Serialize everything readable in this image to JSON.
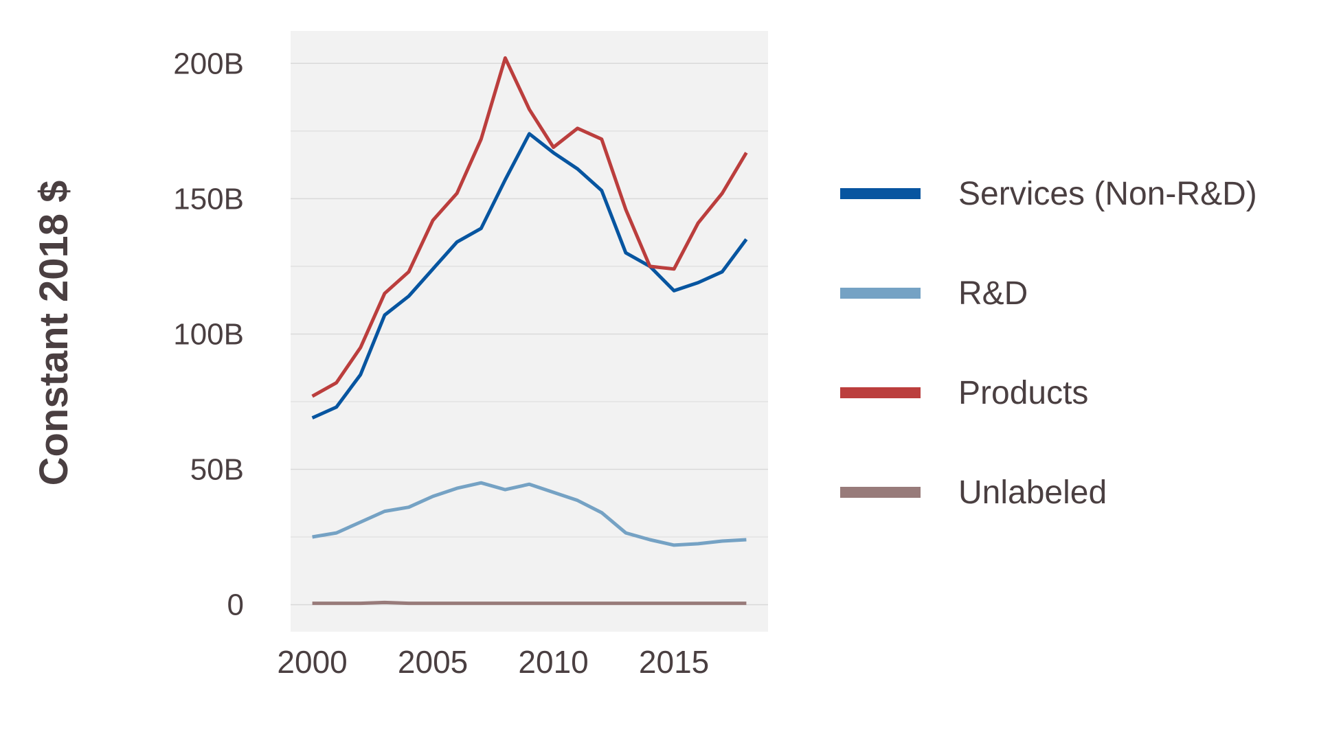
{
  "chart_data": {
    "type": "line",
    "title": "",
    "xlabel": "",
    "ylabel": "Constant 2018 $",
    "x": [
      2000,
      2001,
      2002,
      2003,
      2004,
      2005,
      2006,
      2007,
      2008,
      2009,
      2010,
      2011,
      2012,
      2013,
      2014,
      2015,
      2016,
      2017,
      2018
    ],
    "xlim": [
      1999.1,
      2018.9
    ],
    "ylim": [
      -10,
      212
    ],
    "x_ticks": [
      2000,
      2005,
      2010,
      2015
    ],
    "x_tick_labels": [
      "2000",
      "2005",
      "2010",
      "2015"
    ],
    "y_ticks": [
      0,
      50,
      100,
      150,
      200
    ],
    "y_tick_labels": [
      "0",
      "50B",
      "100B",
      "150B",
      "200B"
    ],
    "y_minor_gridlines": [
      25,
      75,
      125,
      175
    ],
    "y_unit": "billions of constant 2018 dollars",
    "grid": true,
    "legend_position": "right",
    "series": [
      {
        "name": "Services (Non-R&D)",
        "color": "#0755a0",
        "values": [
          69,
          73,
          85,
          107,
          114,
          124,
          134,
          139,
          157,
          174,
          167,
          161,
          153,
          130,
          125,
          116,
          119,
          123,
          135
        ]
      },
      {
        "name": "R&D",
        "color": "#75a2c4",
        "values": [
          25,
          26.5,
          30.5,
          34.5,
          36,
          40,
          43,
          45,
          42.5,
          44.5,
          41.5,
          38.5,
          34,
          26.5,
          24,
          22,
          22.5,
          23.5,
          24
        ]
      },
      {
        "name": "Products",
        "color": "#bb3e3d",
        "values": [
          77,
          82,
          95,
          115,
          123,
          142,
          152,
          172,
          202,
          183,
          169,
          176,
          172,
          146,
          125,
          124,
          141,
          152,
          167
        ]
      },
      {
        "name": "Unlabeled",
        "color": "#987b7a",
        "values": [
          0.5,
          0.5,
          0.5,
          0.8,
          0.5,
          0.5,
          0.5,
          0.5,
          0.5,
          0.5,
          0.5,
          0.5,
          0.5,
          0.5,
          0.5,
          0.5,
          0.5,
          0.5,
          0.5
        ]
      }
    ]
  },
  "colors": {
    "plot_background": "#f2f2f2",
    "gridline": "#d9d9d9",
    "text": "#4a3f41"
  }
}
